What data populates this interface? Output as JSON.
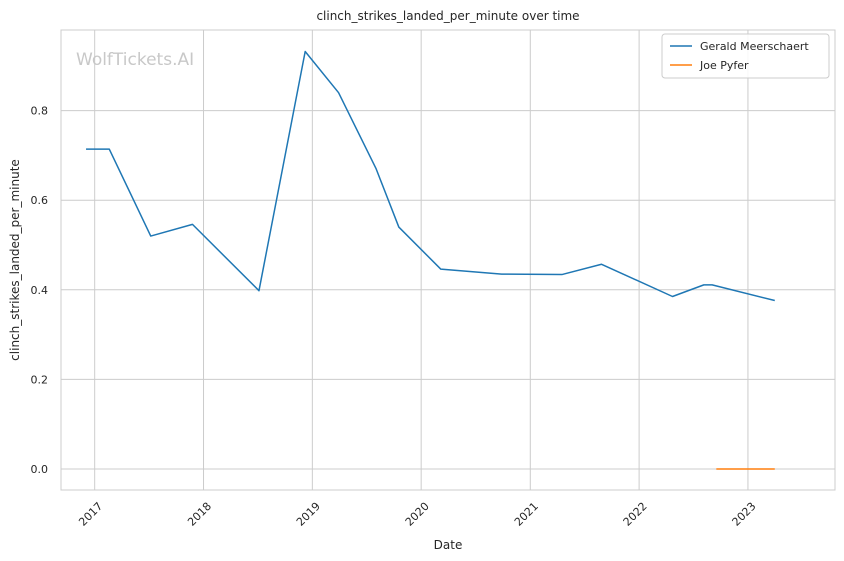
{
  "chart_data": {
    "type": "line",
    "title": "clinch_strikes_landed_per_minute over time",
    "xlabel": "Date",
    "ylabel": "clinch_strikes_landed_per_minute",
    "watermark": "WolfTickets.AI",
    "xlim": [
      "2016-09-10",
      "2023-10-20"
    ],
    "ylim": [
      -0.047,
      0.98
    ],
    "x_ticks": [
      "2017-01-01",
      "2018-01-01",
      "2019-01-01",
      "2020-01-01",
      "2021-01-01",
      "2022-01-01",
      "2023-01-01"
    ],
    "x_tick_labels": [
      "2017",
      "2018",
      "2019",
      "2020",
      "2021",
      "2022",
      "2023"
    ],
    "y_ticks": [
      0.0,
      0.2,
      0.4,
      0.6,
      0.8
    ],
    "y_tick_labels": [
      "0.0",
      "0.2",
      "0.4",
      "0.6",
      "0.8"
    ],
    "grid": true,
    "legend_position": "top-right",
    "series": [
      {
        "name": "Gerald Meerschaert",
        "color": "#1f77b4",
        "points": [
          {
            "x": "2016-12-03",
            "y": 0.714
          },
          {
            "x": "2017-02-19",
            "y": 0.714
          },
          {
            "x": "2017-07-08",
            "y": 0.52
          },
          {
            "x": "2017-11-25",
            "y": 0.546
          },
          {
            "x": "2018-07-06",
            "y": 0.398
          },
          {
            "x": "2018-12-08",
            "y": 0.932
          },
          {
            "x": "2019-03-30",
            "y": 0.84
          },
          {
            "x": "2019-08-03",
            "y": 0.67
          },
          {
            "x": "2019-10-18",
            "y": 0.54
          },
          {
            "x": "2020-03-07",
            "y": 0.446
          },
          {
            "x": "2020-09-27",
            "y": 0.435
          },
          {
            "x": "2021-04-17",
            "y": 0.434
          },
          {
            "x": "2021-08-28",
            "y": 0.457
          },
          {
            "x": "2022-04-23",
            "y": 0.385
          },
          {
            "x": "2022-08-06",
            "y": 0.411
          },
          {
            "x": "2022-09-03",
            "y": 0.411
          },
          {
            "x": "2023-04-01",
            "y": 0.376
          }
        ]
      },
      {
        "name": "Joe Pyfer",
        "color": "#ff7f0e",
        "points": [
          {
            "x": "2022-09-17",
            "y": 0.0
          },
          {
            "x": "2023-04-01",
            "y": 0.0
          }
        ]
      }
    ]
  }
}
